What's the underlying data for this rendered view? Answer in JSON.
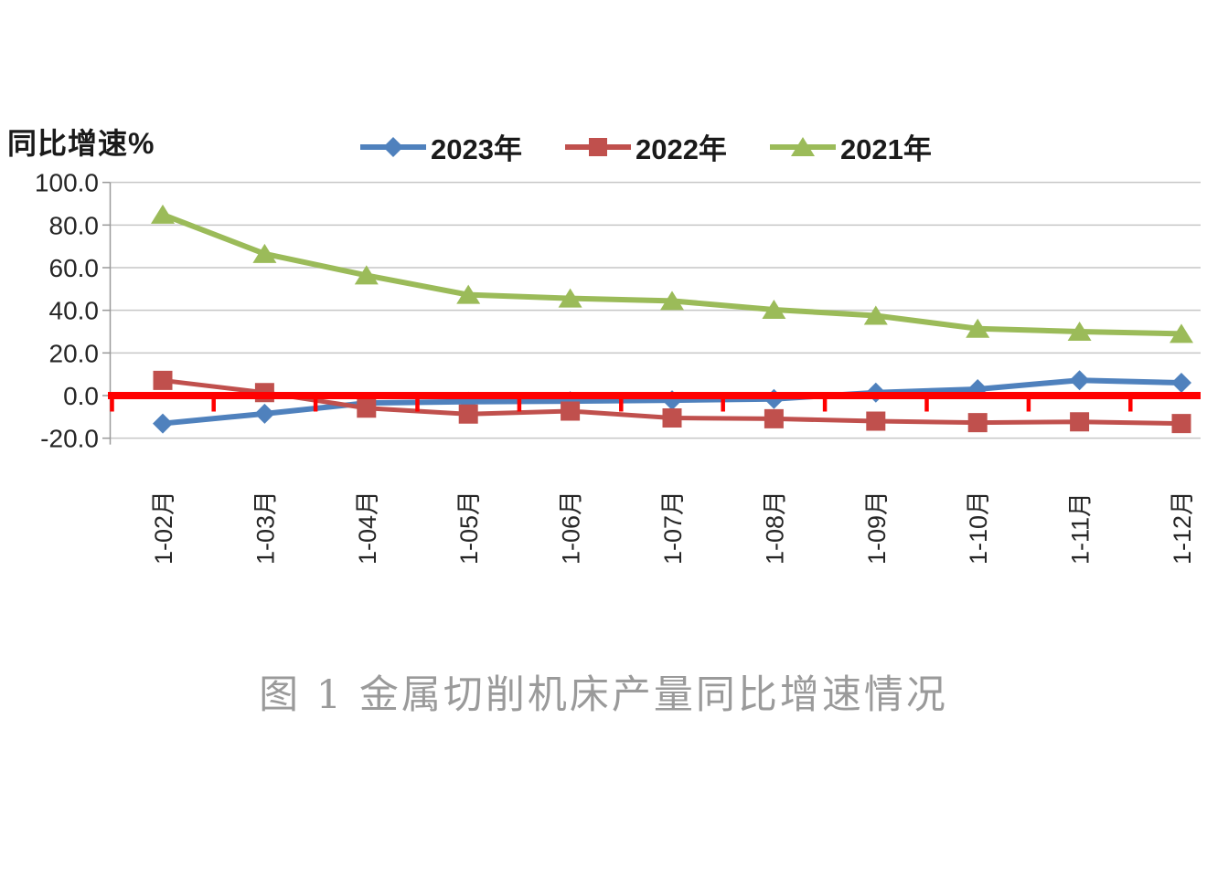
{
  "chart_data": {
    "type": "line",
    "title": "图 1  金属切削机床产量同比增速情况",
    "ylabel": "同比增速%",
    "xlabel": "",
    "categories": [
      "1-02月",
      "1-03月",
      "1-04月",
      "1-05月",
      "1-06月",
      "1-07月",
      "1-08月",
      "1-09月",
      "1-10月",
      "1-11月",
      "1-12月"
    ],
    "series": [
      {
        "name": "2023年",
        "marker": "diamond",
        "color": "#4F81BD",
        "values": [
          -13.1,
          -8.5,
          -3.5,
          -2.9,
          -2.6,
          -2.2,
          -1.6,
          1.4,
          3.0,
          7.2,
          6.0
        ]
      },
      {
        "name": "2022年",
        "marker": "square",
        "color": "#C0504D",
        "values": [
          7.1,
          1.4,
          -5.9,
          -8.7,
          -7.3,
          -10.5,
          -10.9,
          -12.0,
          -12.7,
          -12.3,
          -13.1
        ]
      },
      {
        "name": "2021年",
        "marker": "triangle",
        "color": "#9BBB59",
        "values": [
          84.9,
          66.5,
          56.4,
          47.3,
          45.6,
          44.4,
          40.3,
          37.5,
          31.4,
          30.0,
          29.0
        ]
      }
    ],
    "yticks": [
      100,
      80,
      60,
      40,
      20,
      0,
      -20
    ],
    "ytick_labels": [
      "100.0",
      "80.0",
      "60.0",
      "40.0",
      "20.0",
      "0.0",
      "-20.0"
    ],
    "ylim": [
      -20,
      100
    ],
    "grid": true,
    "legend_position": "top",
    "zero_line_color": "#FF0000",
    "gridline_color": "#C6C6C6",
    "axis_color": "#999999",
    "tick_label_color": "#262626",
    "caption_color": "#9a9a9a"
  }
}
